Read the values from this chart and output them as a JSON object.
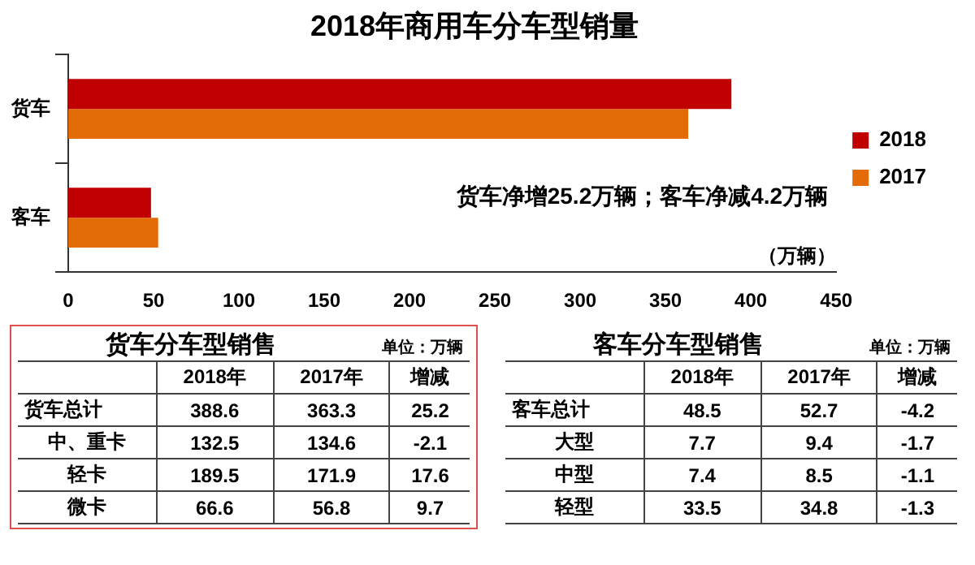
{
  "chart_data": [
    {
      "type": "bar",
      "title": "2018年商用车分车型销量",
      "orientation": "horizontal",
      "categories": [
        "货车",
        "客车"
      ],
      "series": [
        {
          "name": "2018",
          "color": "#c00000",
          "values": [
            388.6,
            48.5
          ]
        },
        {
          "name": "2017",
          "color": "#e36c09",
          "values": [
            363.3,
            52.7
          ]
        }
      ],
      "xlim": [
        0,
        450
      ],
      "xticks": [
        0,
        50,
        100,
        150,
        200,
        250,
        300,
        350,
        400,
        450
      ],
      "xlabel": "（万辆）",
      "legend": "right",
      "grid": false,
      "annotations": [
        "货车净增25.2万辆；客车净减4.2万辆"
      ]
    },
    {
      "type": "other",
      "title": "货车分车型销售",
      "annotations": [
        "单位：万辆"
      ],
      "categories": [
        "2018年",
        "2017年",
        "增减"
      ],
      "y_categories": [
        "货车总计",
        "中、重卡",
        "轻卡",
        "微卡"
      ],
      "cell_labels": [
        [
          "388.6",
          "363.3",
          "25.2"
        ],
        [
          "132.5",
          "134.6",
          "-2.1"
        ],
        [
          "189.5",
          "171.9",
          "17.6"
        ],
        [
          "66.6",
          "56.8",
          "9.7"
        ]
      ]
    },
    {
      "type": "other",
      "title": "客车分车型销售",
      "annotations": [
        "单位：万辆"
      ],
      "categories": [
        "2018年",
        "2017年",
        "增减"
      ],
      "y_categories": [
        "客车总计",
        "大型",
        "中型",
        "轻型"
      ],
      "cell_labels": [
        [
          "48.5",
          "52.7",
          "-4.2"
        ],
        [
          "7.7",
          "9.4",
          "-1.7"
        ],
        [
          "7.4",
          "8.5",
          "-1.1"
        ],
        [
          "33.5",
          "34.8",
          "-1.3"
        ]
      ]
    }
  ]
}
